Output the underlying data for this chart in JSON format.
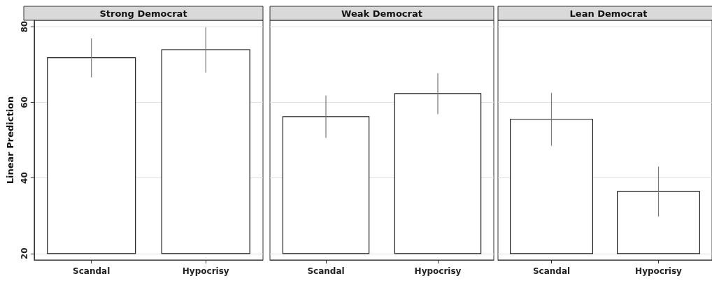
{
  "chart_data": [
    {
      "type": "bar",
      "title": "Strong Democrat",
      "ylabel": "Linear Prediction",
      "categories": [
        "Scandal",
        "Hypocrisy"
      ],
      "base": [
        20,
        20
      ],
      "values": [
        51.8,
        53.9
      ],
      "errors": [
        [
          66.6,
          76.9
        ],
        [
          67.9,
          79.8
        ]
      ],
      "color": "#ffffff",
      "ylim": [
        18.3,
        81.7
      ],
      "yticks": [
        20,
        40,
        60,
        80
      ],
      "grid": "y"
    },
    {
      "type": "bar",
      "title": "Weak Democrat",
      "categories": [
        "Scandal",
        "Hypocrisy"
      ],
      "base": [
        20,
        20
      ],
      "values": [
        36.2,
        42.3
      ],
      "errors": [
        [
          50.6,
          61.8
        ],
        [
          56.9,
          67.7
        ]
      ],
      "color": "#ffffff",
      "ylim": [
        18.3,
        81.7
      ],
      "yticks": [
        20,
        40,
        60,
        80
      ],
      "grid": "y",
      "tick_labels": "x"
    },
    {
      "type": "bar",
      "title": "Lean Democrat",
      "categories": [
        "Scandal",
        "Hypocrisy"
      ],
      "base": [
        20,
        20
      ],
      "values": [
        35.5,
        16.4
      ],
      "errors": [
        [
          48.5,
          62.5
        ],
        [
          29.8,
          43.0
        ]
      ],
      "color": "#ffffff",
      "ylim": [
        18.3,
        81.7
      ],
      "yticks": [
        20,
        40,
        60,
        80
      ],
      "grid": "y",
      "tick_labels": "x"
    }
  ]
}
